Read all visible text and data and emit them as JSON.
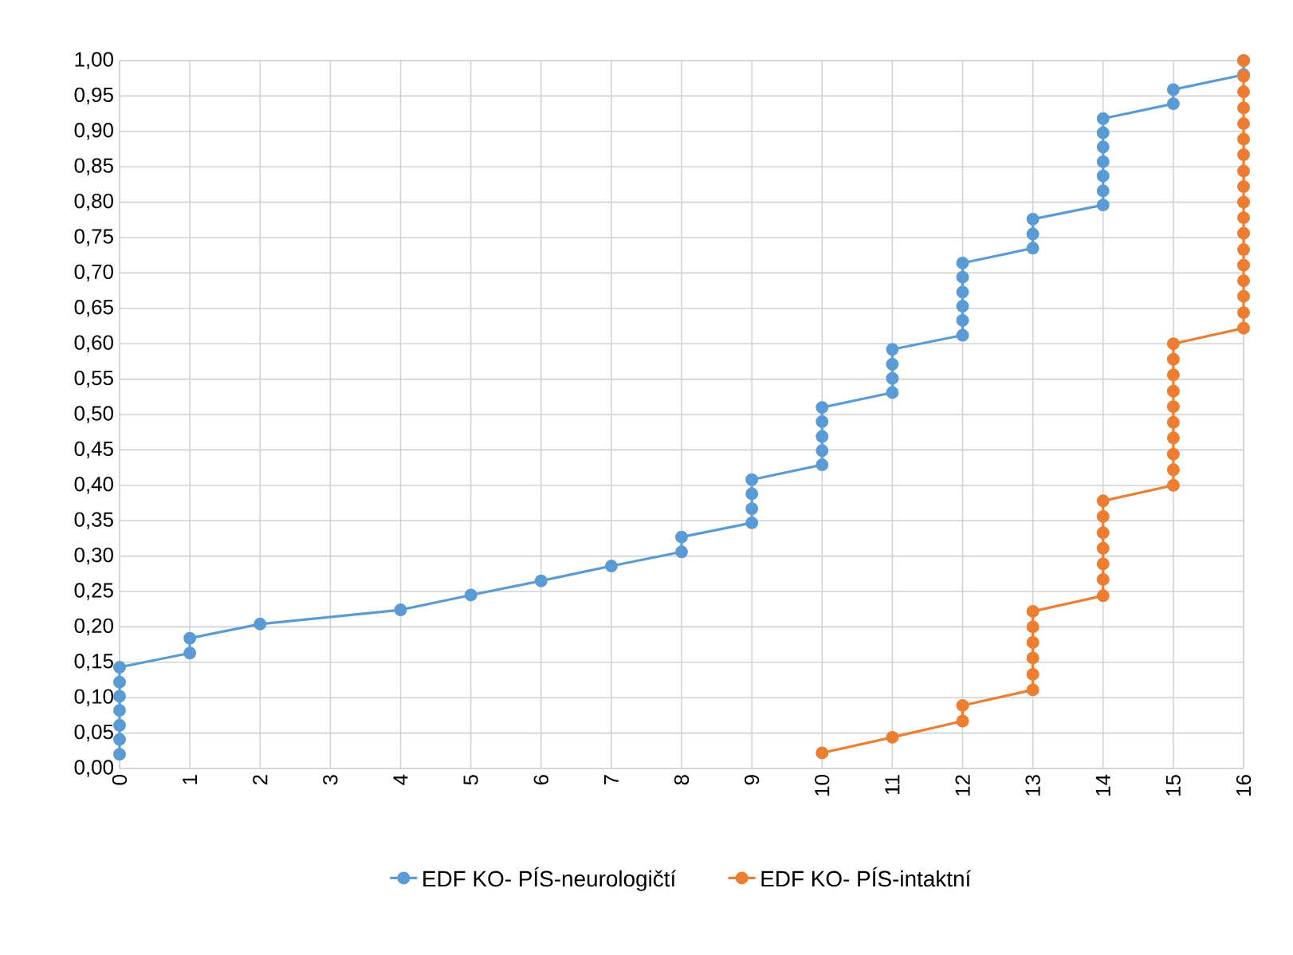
{
  "chart_data": {
    "type": "line",
    "marker": "circle",
    "grid": true,
    "legend": "bottom",
    "xlim": [
      0,
      16
    ],
    "xticks": [
      0,
      1,
      2,
      3,
      4,
      5,
      6,
      7,
      8,
      9,
      10,
      11,
      12,
      13,
      14,
      15,
      16
    ],
    "ylim": [
      0,
      1
    ],
    "yticks": [
      {
        "value": 0,
        "label": "0,00"
      },
      {
        "value": 0.05,
        "label": "0,05"
      },
      {
        "value": 0.1,
        "label": "0,10"
      },
      {
        "value": 0.15,
        "label": "0,15"
      },
      {
        "value": 0.2,
        "label": "0,20"
      },
      {
        "value": 0.25,
        "label": "0,25"
      },
      {
        "value": 0.3,
        "label": "0,30"
      },
      {
        "value": 0.35,
        "label": "0,35"
      },
      {
        "value": 0.4,
        "label": "0,40"
      },
      {
        "value": 0.45,
        "label": "0,45"
      },
      {
        "value": 0.5,
        "label": "0,50"
      },
      {
        "value": 0.55,
        "label": "0,55"
      },
      {
        "value": 0.6,
        "label": "0,60"
      },
      {
        "value": 0.65,
        "label": "0,65"
      },
      {
        "value": 0.7,
        "label": "0,70"
      },
      {
        "value": 0.75,
        "label": "0,75"
      },
      {
        "value": 0.8,
        "label": "0,80"
      },
      {
        "value": 0.85,
        "label": "0,85"
      },
      {
        "value": 0.9,
        "label": "0,90"
      },
      {
        "value": 0.95,
        "label": "0,95"
      },
      {
        "value": 1,
        "label": "1,00"
      }
    ],
    "series": [
      {
        "name": "EDF KO- PÍS-neurologičtí",
        "color": "#5b9bd5",
        "x": [
          0,
          0,
          0,
          0,
          0,
          0,
          0,
          1,
          1,
          2,
          4,
          5,
          6,
          7,
          8,
          8,
          9,
          9,
          9,
          9,
          10,
          10,
          10,
          10,
          10,
          11,
          11,
          11,
          11,
          12,
          12,
          12,
          12,
          12,
          12,
          13,
          13,
          13,
          14,
          14,
          14,
          14,
          14,
          14,
          14,
          15,
          15,
          16,
          16
        ],
        "values": [
          0.02,
          0.041,
          0.061,
          0.082,
          0.102,
          0.122,
          0.143,
          0.163,
          0.184,
          0.204,
          0.224,
          0.245,
          0.265,
          0.286,
          0.306,
          0.327,
          0.347,
          0.367,
          0.388,
          0.408,
          0.429,
          0.449,
          0.469,
          0.49,
          0.51,
          0.531,
          0.551,
          0.571,
          0.592,
          0.612,
          0.633,
          0.653,
          0.673,
          0.694,
          0.714,
          0.735,
          0.755,
          0.776,
          0.796,
          0.816,
          0.837,
          0.857,
          0.878,
          0.898,
          0.918,
          0.939,
          0.959,
          0.98,
          1.0
        ]
      },
      {
        "name": "EDF KO- PÍS-intaktní",
        "color": "#ed7d31",
        "x": [
          10,
          11,
          12,
          12,
          13,
          13,
          13,
          13,
          13,
          13,
          14,
          14,
          14,
          14,
          14,
          14,
          14,
          15,
          15,
          15,
          15,
          15,
          15,
          15,
          15,
          15,
          15,
          16,
          16,
          16,
          16,
          16,
          16,
          16,
          16,
          16,
          16,
          16,
          16,
          16,
          16,
          16,
          16,
          16,
          16
        ],
        "values": [
          0.022,
          0.044,
          0.067,
          0.089,
          0.111,
          0.133,
          0.156,
          0.178,
          0.2,
          0.222,
          0.244,
          0.267,
          0.289,
          0.311,
          0.333,
          0.356,
          0.378,
          0.4,
          0.422,
          0.444,
          0.467,
          0.489,
          0.511,
          0.533,
          0.556,
          0.578,
          0.6,
          0.622,
          0.644,
          0.667,
          0.689,
          0.711,
          0.733,
          0.756,
          0.778,
          0.8,
          0.822,
          0.844,
          0.867,
          0.889,
          0.911,
          0.933,
          0.956,
          0.978,
          1.0
        ]
      }
    ]
  }
}
